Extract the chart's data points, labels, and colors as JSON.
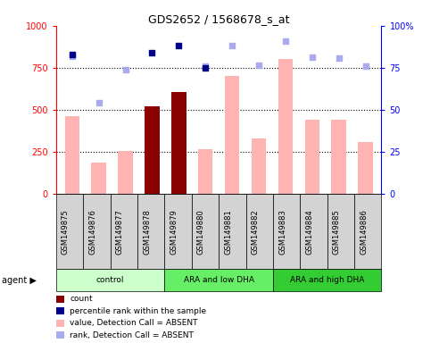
{
  "title": "GDS2652 / 1568678_s_at",
  "samples": [
    "GSM149875",
    "GSM149876",
    "GSM149877",
    "GSM149878",
    "GSM149879",
    "GSM149880",
    "GSM149881",
    "GSM149882",
    "GSM149883",
    "GSM149884",
    "GSM149885",
    "GSM149886"
  ],
  "bar_values": [
    460,
    185,
    255,
    520,
    605,
    265,
    700,
    330,
    800,
    440,
    440,
    310
  ],
  "bar_colors": [
    "#FFB3B3",
    "#FFB3B3",
    "#FFB3B3",
    "#8B0000",
    "#8B0000",
    "#FFB3B3",
    "#FFB3B3",
    "#FFB3B3",
    "#FFB3B3",
    "#FFB3B3",
    "#FFB3B3",
    "#FFB3B3"
  ],
  "scatter_dark_blue": [
    830,
    null,
    null,
    840,
    880,
    750,
    null,
    null,
    null,
    null,
    null,
    null
  ],
  "scatter_light_blue": [
    820,
    540,
    740,
    null,
    null,
    760,
    880,
    765,
    910,
    815,
    810,
    760
  ],
  "ylim_left": [
    0,
    1000
  ],
  "ylim_right": [
    0,
    100
  ],
  "yticks_left": [
    0,
    250,
    500,
    750,
    1000
  ],
  "yticks_right": [
    0,
    25,
    50,
    75,
    100
  ],
  "ytick_labels_right": [
    "0",
    "25",
    "50",
    "75",
    "100%"
  ],
  "groups": [
    {
      "label": "control",
      "start": 0,
      "end": 3,
      "color": "#CCFFCC"
    },
    {
      "label": "ARA and low DHA",
      "start": 4,
      "end": 7,
      "color": "#66EE66"
    },
    {
      "label": "ARA and high DHA",
      "start": 8,
      "end": 11,
      "color": "#33CC33"
    }
  ],
  "legend_items": [
    {
      "color": "#8B0000",
      "label": "count"
    },
    {
      "color": "#00008B",
      "label": "percentile rank within the sample"
    },
    {
      "color": "#FFB3B3",
      "label": "value, Detection Call = ABSENT"
    },
    {
      "color": "#AAAAEE",
      "label": "rank, Detection Call = ABSENT"
    }
  ],
  "dotted_lines": [
    250,
    500,
    750
  ],
  "agent_label": "agent",
  "background_color": "#FFFFFF"
}
